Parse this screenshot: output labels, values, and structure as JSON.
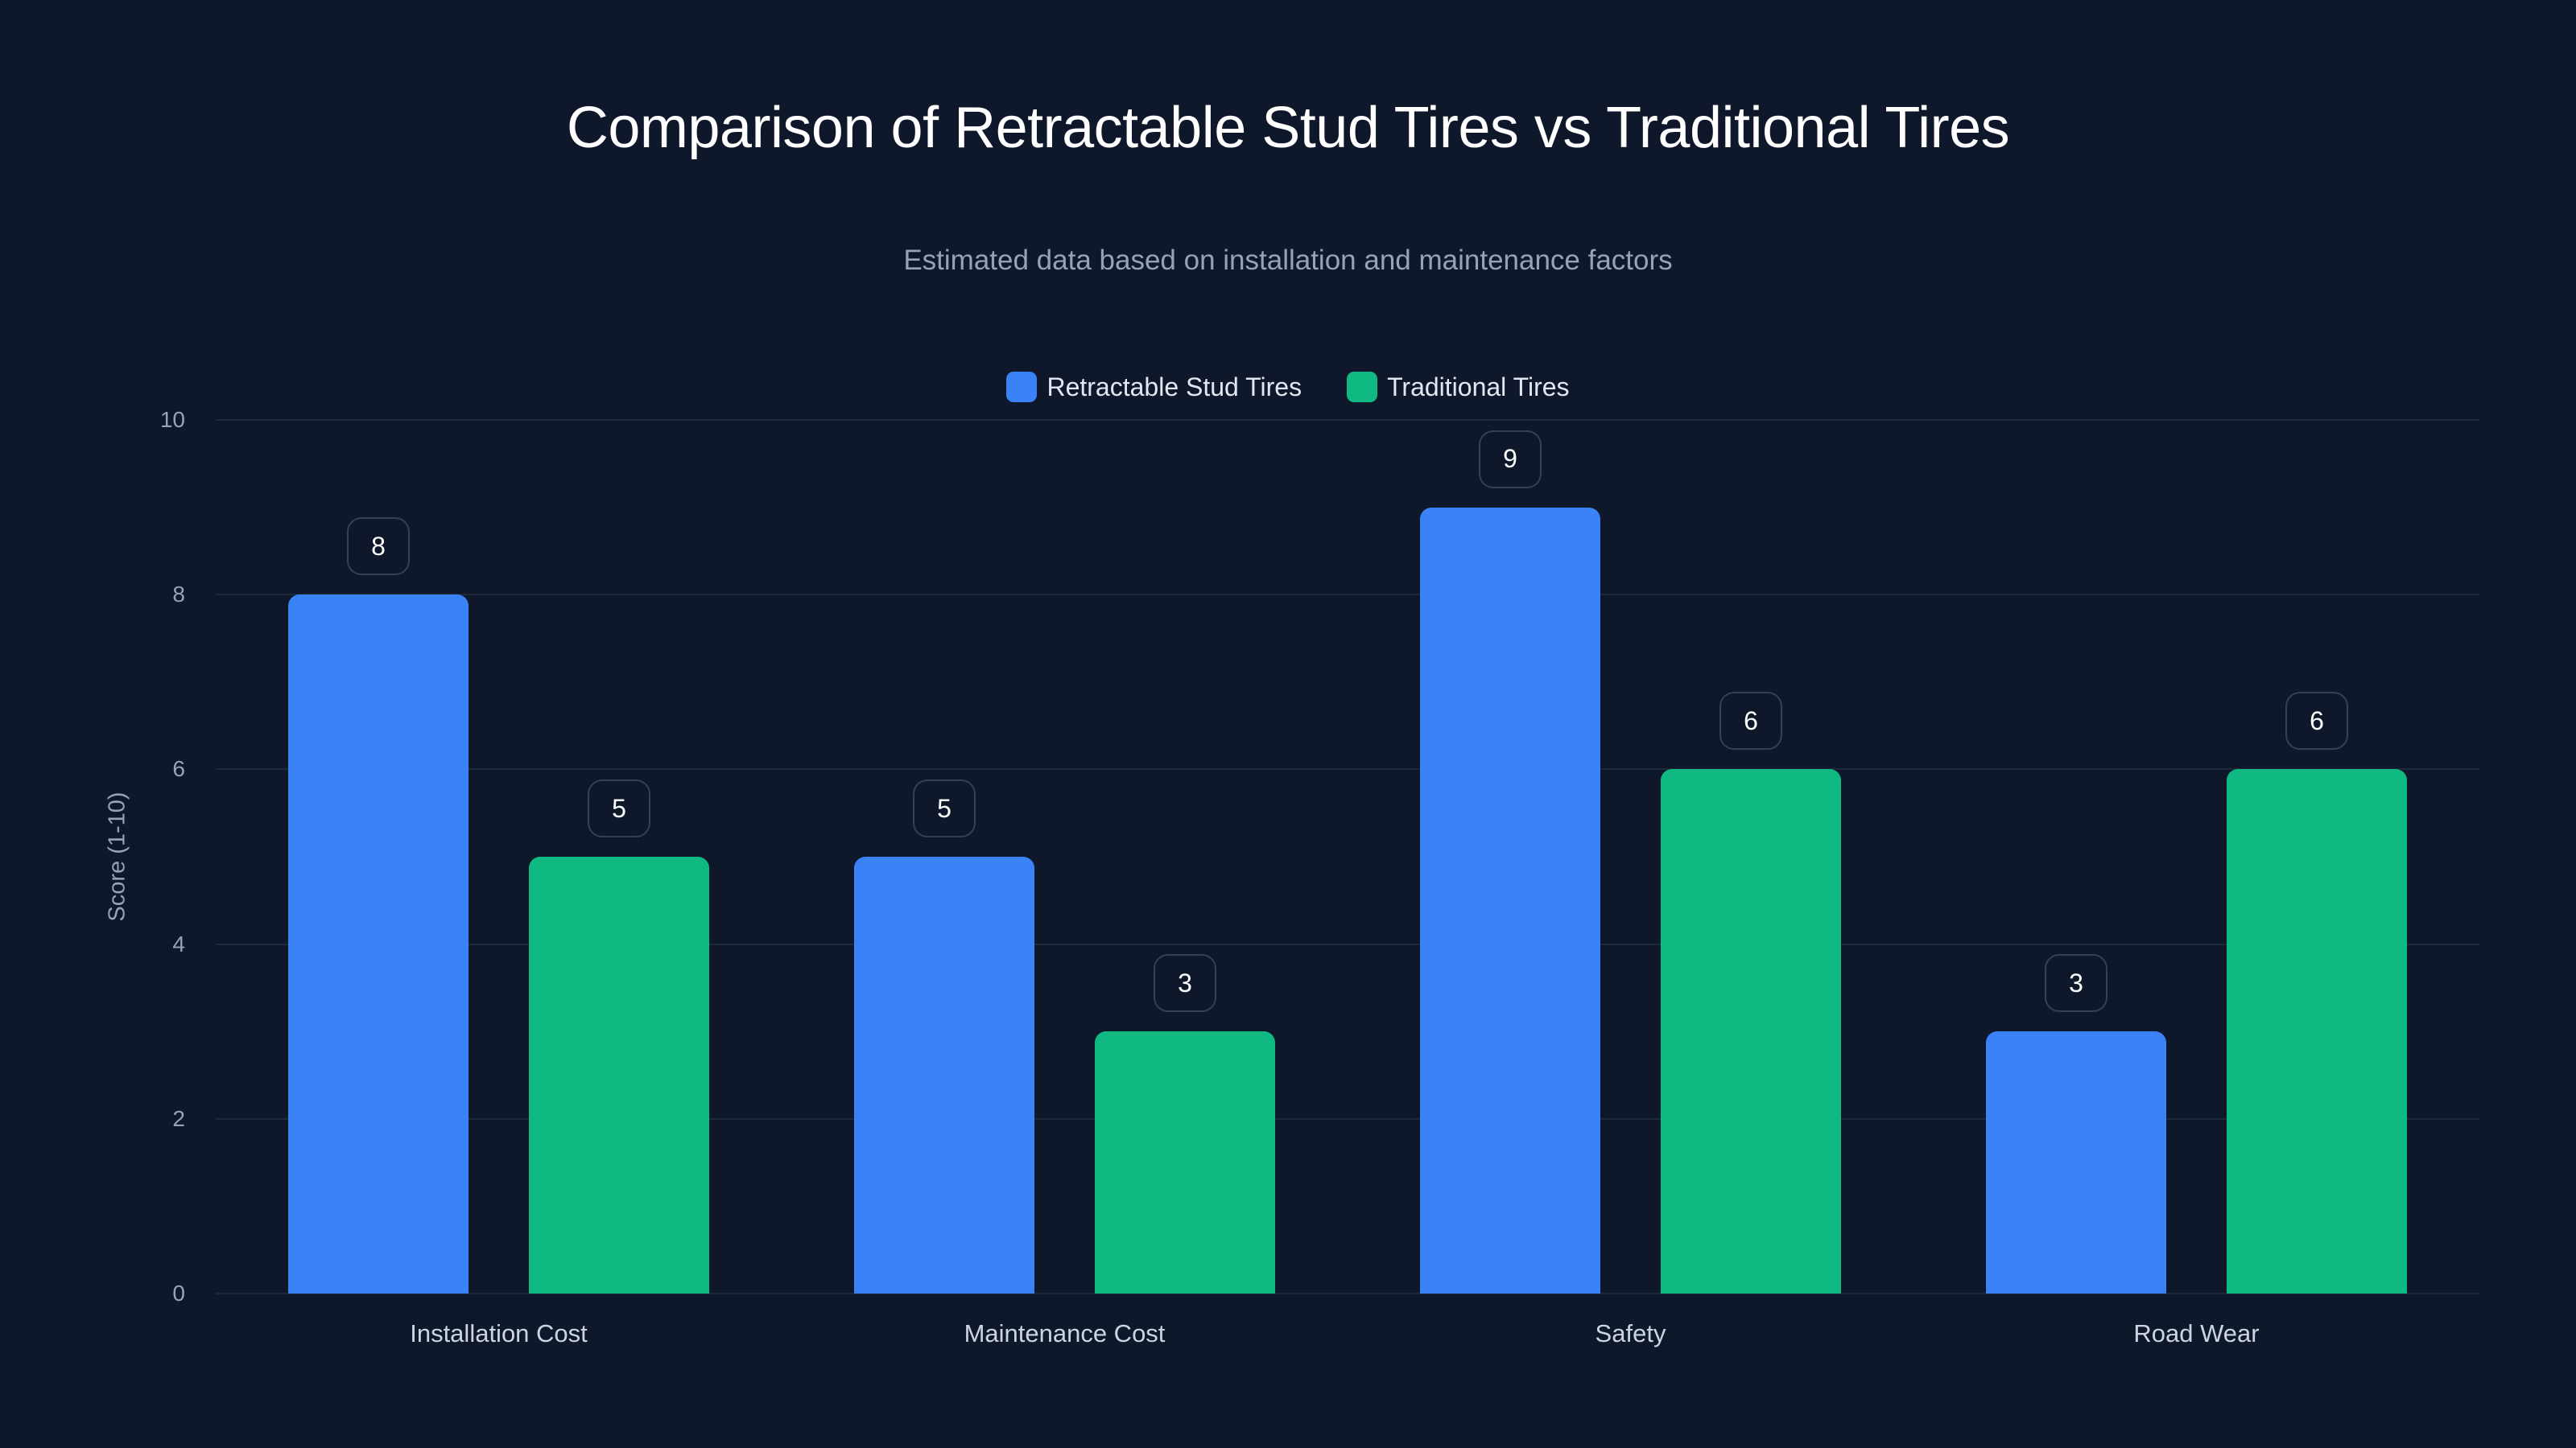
{
  "chart_data": {
    "type": "bar",
    "title": "Comparison of Retractable Stud Tires vs Traditional Tires",
    "subtitle": "Estimated data based on installation and maintenance factors",
    "xlabel": "",
    "ylabel": "Score (1-10)",
    "ylim": [
      0,
      10
    ],
    "yticks": [
      0,
      2,
      4,
      6,
      8,
      10
    ],
    "categories": [
      "Installation Cost",
      "Maintenance Cost",
      "Safety",
      "Road Wear"
    ],
    "series": [
      {
        "name": "Retractable Stud Tires",
        "color": "#3b82f6",
        "values": [
          8,
          5,
          9,
          3
        ]
      },
      {
        "name": "Traditional Tires",
        "color": "#10b981",
        "values": [
          5,
          3,
          6,
          6
        ]
      }
    ],
    "grid": true,
    "legend_position": "top"
  },
  "colors": {
    "background": "#0f172a",
    "grid": "#1e293b",
    "label_border": "#334155"
  }
}
